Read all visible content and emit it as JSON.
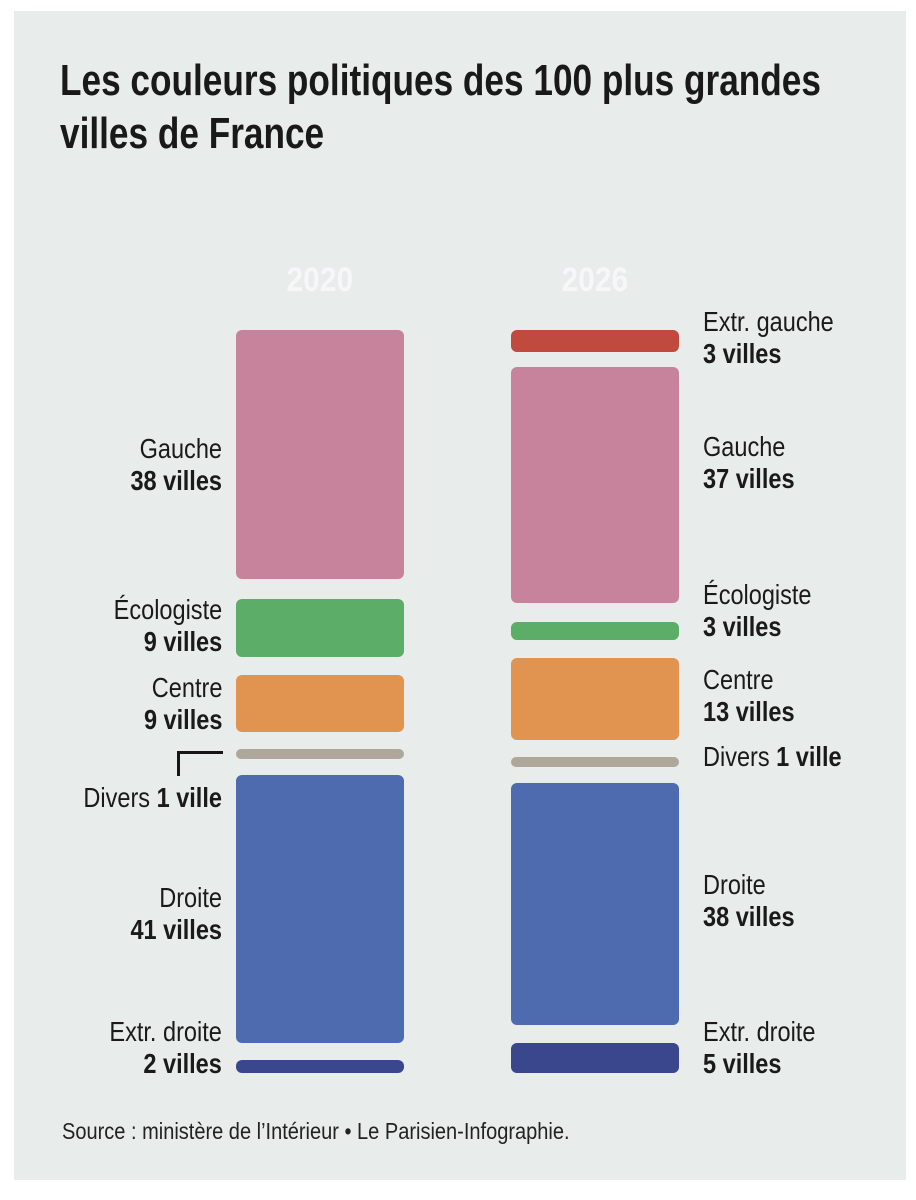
{
  "title": "Les couleurs politiques des 100 plus grandes villes de France",
  "title_lines": [
    "Les couleurs politiques des 100 plus grandes",
    "villes de France"
  ],
  "source": "Source : ministère de l’Intérieur • Le Parisien-Infographie.",
  "colors": {
    "background_panel": "#e8eceb",
    "page_margin": "#ffffff",
    "text": "#1a1a1a",
    "year_badge": "#45606e",
    "extr_gauche": "#c04a3d",
    "gauche": "#c7839b",
    "ecologiste": "#5bad67",
    "centre": "#e19350",
    "divers": "#afa89a",
    "droite": "#4d6bae",
    "extr_droite": "#3b478d"
  },
  "chart_data": {
    "type": "bar",
    "variant": "stacked-column-comparison",
    "title": "Les couleurs politiques des 100 plus grandes villes de France",
    "unit": "villes",
    "total_per_column": 100,
    "legend_position": "beside-segments",
    "grid": false,
    "columns": [
      {
        "year": "2020",
        "segments": [
          {
            "party": "Gauche",
            "count": 38,
            "count_label": "38 villes",
            "color_key": "gauche"
          },
          {
            "party": "Écologiste",
            "count": 9,
            "count_label": "9 villes",
            "color_key": "ecologiste"
          },
          {
            "party": "Centre",
            "count": 9,
            "count_label": "9 villes",
            "color_key": "centre"
          },
          {
            "party": "Divers",
            "count": 1,
            "count_label": "1 ville",
            "color_key": "divers",
            "single_line": true,
            "callout": true
          },
          {
            "party": "Droite",
            "count": 41,
            "count_label": "41 villes",
            "color_key": "droite"
          },
          {
            "party": "Extr. droite",
            "count": 2,
            "count_label": "2 villes",
            "color_key": "extr_droite"
          }
        ]
      },
      {
        "year": "2026",
        "segments": [
          {
            "party": "Extr. gauche",
            "count": 3,
            "count_label": "3 villes",
            "color_key": "extr_gauche"
          },
          {
            "party": "Gauche",
            "count": 37,
            "count_label": "37 villes",
            "color_key": "gauche"
          },
          {
            "party": "Écologiste",
            "count": 3,
            "count_label": "3 villes",
            "color_key": "ecologiste"
          },
          {
            "party": "Centre",
            "count": 13,
            "count_label": "13 villes",
            "color_key": "centre"
          },
          {
            "party": "Divers",
            "count": 1,
            "count_label": "1 ville",
            "color_key": "divers",
            "single_line": true
          },
          {
            "party": "Droite",
            "count": 38,
            "count_label": "38 villes",
            "color_key": "droite"
          },
          {
            "party": "Extr. droite",
            "count": 5,
            "count_label": "5 villes",
            "color_key": "extr_droite"
          }
        ]
      }
    ]
  }
}
